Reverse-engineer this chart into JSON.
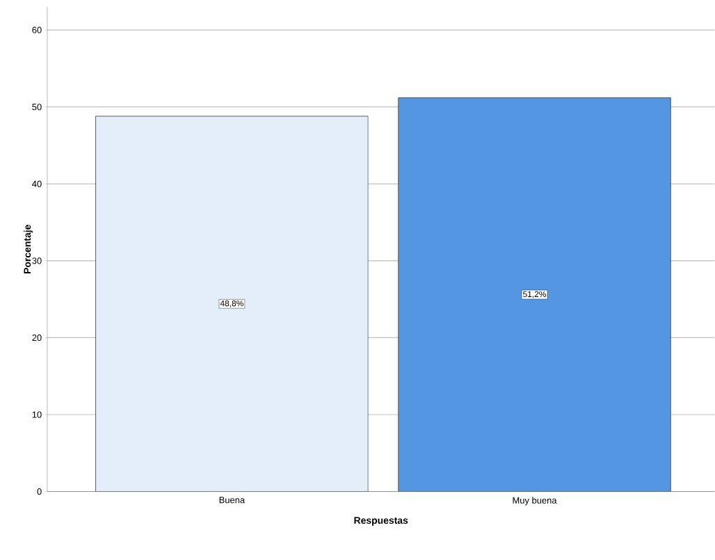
{
  "chart_data": {
    "type": "bar",
    "xlabel": "Respuestas",
    "ylabel": "Porcentaje",
    "categories": [
      "Buena",
      "Muy buena"
    ],
    "values": [
      48.8,
      51.2
    ],
    "colors": [
      "#e3eef9",
      "#5596e3"
    ],
    "value_labels": [
      "48,8%",
      "51,2%"
    ],
    "ylim": [
      0,
      63
    ],
    "yticks": [
      0,
      10,
      20,
      30,
      40,
      50,
      60
    ],
    "grid": "y"
  }
}
